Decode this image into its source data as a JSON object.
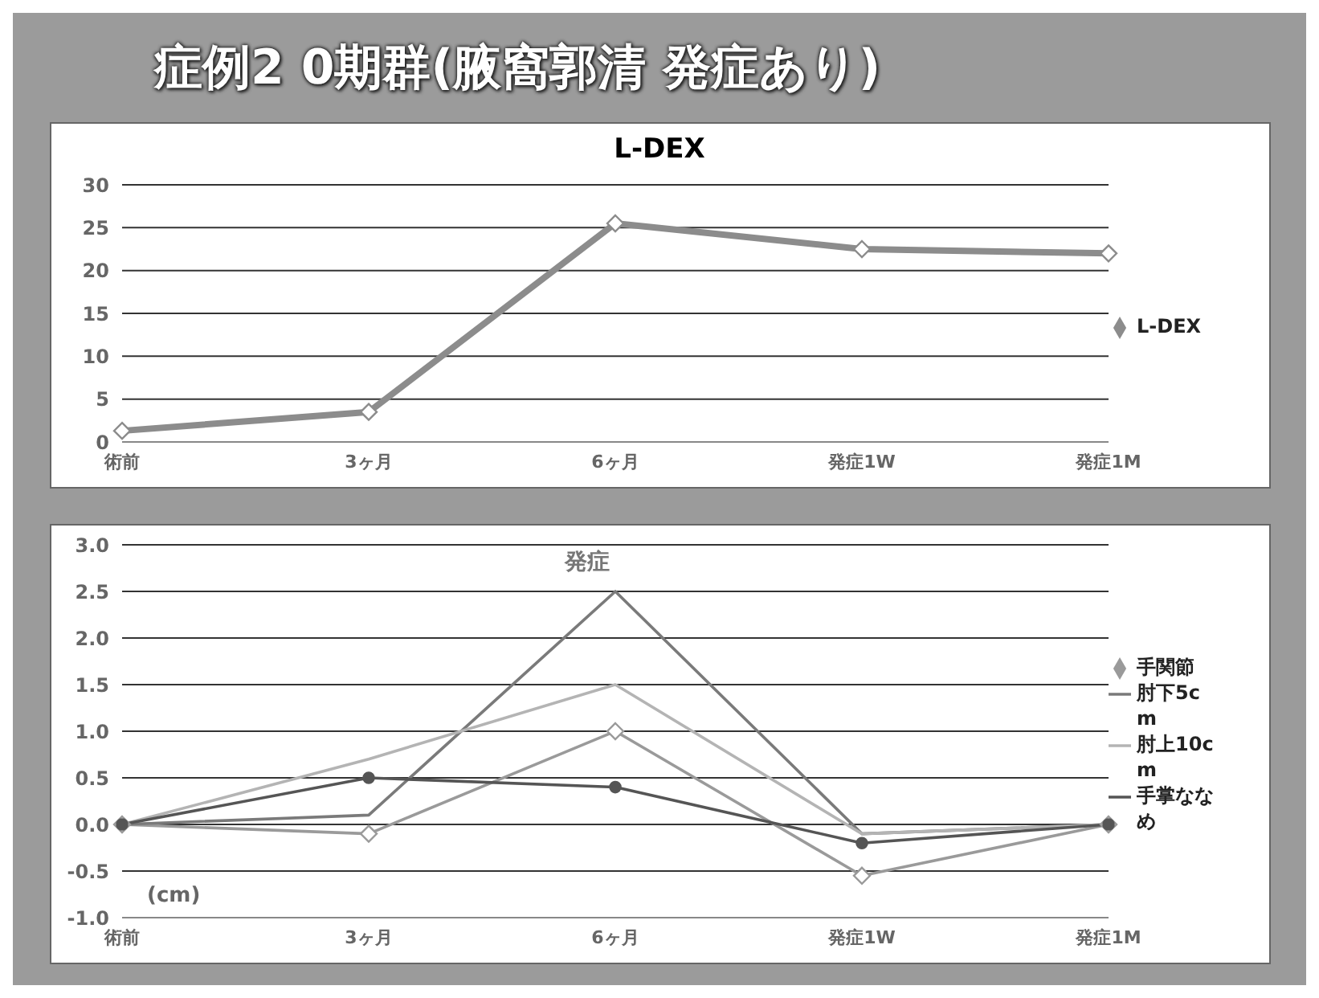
{
  "chart_data": [
    {
      "type": "line",
      "title": "症例2 0期群(腋窩郭清 発症あり)",
      "subtitle": "L-DEX",
      "categories": [
        "術前",
        "3ヶ月",
        "6ヶ月",
        "発症1W",
        "発症1M"
      ],
      "series": [
        {
          "name": "L-DEX",
          "color": "#8c8c8c",
          "values": [
            1.3,
            3.5,
            25.5,
            22.5,
            22
          ],
          "marker": "diamond"
        }
      ],
      "ylim": [
        0,
        30
      ],
      "yticks": [
        0,
        5,
        10,
        15,
        20,
        25,
        30
      ],
      "grid": "y",
      "legend": "right"
    },
    {
      "type": "line",
      "ylabel": "(cm)",
      "annotations": [
        "発症"
      ],
      "categories": [
        "術前",
        "3ヶ月",
        "6ヶ月",
        "発症1W",
        "発症1M"
      ],
      "series": [
        {
          "name": "手関節",
          "color": "#9a9a9a",
          "values": [
            0,
            -0.1,
            1.0,
            -0.55,
            0
          ],
          "marker": "diamond"
        },
        {
          "name": "肘下5cm",
          "color": "#7a7a7a",
          "values": [
            0,
            0.1,
            2.5,
            -0.1,
            0
          ],
          "marker": "none"
        },
        {
          "name": "肘上10cm",
          "color": "#b4b4b4",
          "values": [
            0,
            0.7,
            1.5,
            -0.1,
            0
          ],
          "marker": "none"
        },
        {
          "name": "手掌ななめ",
          "color": "#555555",
          "values": [
            0,
            0.5,
            0.4,
            -0.2,
            0
          ],
          "marker": "circle"
        }
      ],
      "ylim": [
        -1,
        3
      ],
      "yticks": [
        {
          "value": -1,
          "label": "-1.0"
        },
        {
          "value": -0.5,
          "label": "-0.5"
        },
        {
          "value": 0,
          "label": "0.0"
        },
        {
          "value": 0.5,
          "label": "0.5"
        },
        {
          "value": 1,
          "label": "1.0"
        },
        {
          "value": 1.5,
          "label": "1.5"
        },
        {
          "value": 2,
          "label": "2.0"
        },
        {
          "value": 2.5,
          "label": "2.5"
        },
        {
          "value": 3,
          "label": "3.0"
        }
      ],
      "grid": "y",
      "legend": "right"
    }
  ]
}
